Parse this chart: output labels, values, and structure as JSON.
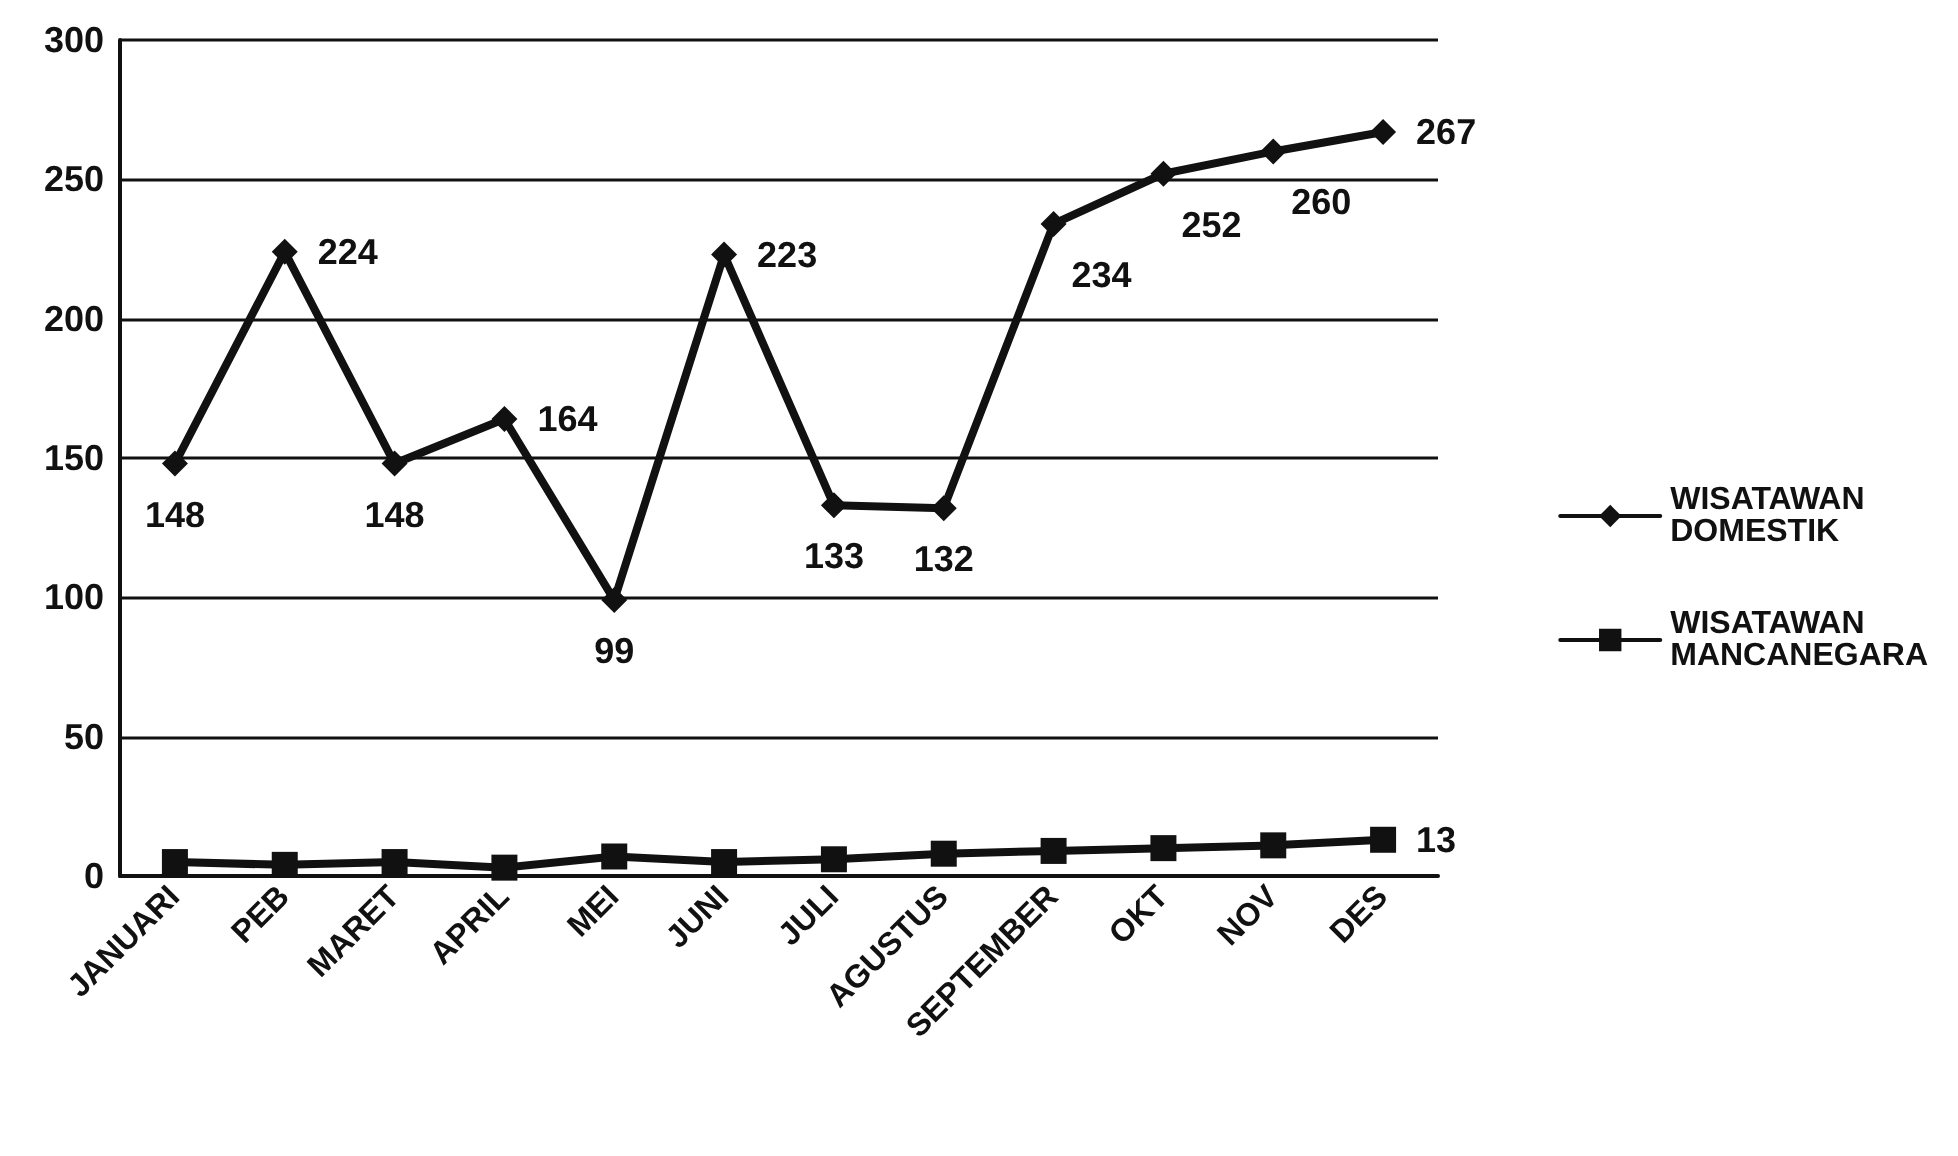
{
  "chart_data": {
    "type": "line",
    "categories": [
      "JANUARI",
      "PEB",
      "MARET",
      "APRIL",
      "MEI",
      "JUNI",
      "JULI",
      "AGUSTUS",
      "SEPTEMBER",
      "OKT",
      "NOV",
      "DES"
    ],
    "series": [
      {
        "name": "WISATAWAN DOMESTIK",
        "color": "#111111",
        "marker": "diamond",
        "values": [
          148,
          224,
          148,
          164,
          99,
          223,
          133,
          132,
          234,
          252,
          260,
          267
        ],
        "value_labels": [
          "148",
          "224",
          "148",
          "164",
          "99",
          "223",
          "133",
          "132",
          "234",
          "252",
          "260",
          "267"
        ]
      },
      {
        "name": "WISATAWAN MANCANEGARA",
        "color": "#111111",
        "marker": "square",
        "values": [
          5,
          4,
          5,
          3,
          7,
          5,
          6,
          8,
          9,
          10,
          11,
          13
        ],
        "value_labels": [
          null,
          null,
          null,
          null,
          null,
          null,
          null,
          null,
          null,
          null,
          null,
          "13"
        ]
      }
    ],
    "ylim": [
      0,
      300
    ],
    "yticks": [
      0,
      50,
      100,
      150,
      200,
      250,
      300
    ],
    "grid": "y",
    "legend": "right"
  }
}
